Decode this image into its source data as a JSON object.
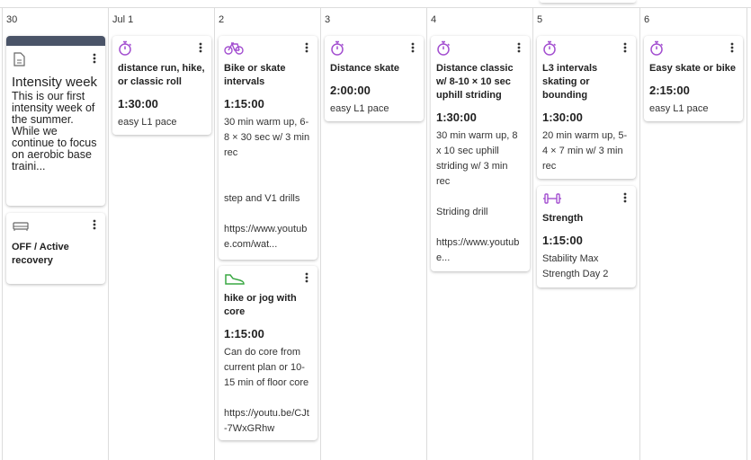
{
  "columns": [
    {
      "date": "30",
      "cards": [
        {
          "title": "Intensity week",
          "description": [
            "This is our first intensity week of the summer. While we continue to focus on aerobic base traini..."
          ]
        },
        {
          "title": "OFF / Active recovery"
        }
      ]
    },
    {
      "date": "Jul 1",
      "cards": [
        {
          "title": "distance run, hike, or classic roll",
          "duration": "1:30:00",
          "description": [
            "easy L1 pace"
          ]
        }
      ]
    },
    {
      "date": "2",
      "cards": [
        {
          "title": "Bike or skate intervals",
          "duration": "1:15:00",
          "description": [
            "30 min warm up, 6-8 × 30 sec w/ 3 min rec",
            "step and V1 drills",
            "https://www.youtube.com/wat..."
          ]
        },
        {
          "title": "hike or jog with core",
          "duration": "1:15:00",
          "description": [
            "Can do core from current plan or 10-15 min of floor core",
            "https://youtu.be/CJt-7WxGRhw"
          ]
        }
      ]
    },
    {
      "date": "3",
      "cards": [
        {
          "title": "Distance skate",
          "duration": "2:00:00",
          "description": [
            "easy L1 pace"
          ]
        }
      ]
    },
    {
      "date": "4",
      "cards": [
        {
          "title": "Distance classic w/ 8-10 × 10 sec uphill striding",
          "duration": "1:30:00",
          "description": [
            "30 min warm up, 8 x 10 sec uphill striding w/ 3 min rec",
            "Striding drill",
            "https://www.youtube..."
          ]
        }
      ]
    },
    {
      "date": "5",
      "cards": [
        {
          "title": "L3 intervals skating or bounding",
          "duration": "1:30:00",
          "description": [
            "20 min warm up, 5-4 × 7 min w/ 3 min rec"
          ]
        },
        {
          "title": "Strength",
          "duration": "1:15:00",
          "description": [
            "Stability Max Strength Day 2"
          ]
        }
      ]
    },
    {
      "date": "6",
      "cards": [
        {
          "title": "Easy skate or bike",
          "duration": "2:15:00",
          "description": [
            "easy L1 pace"
          ]
        }
      ]
    }
  ]
}
